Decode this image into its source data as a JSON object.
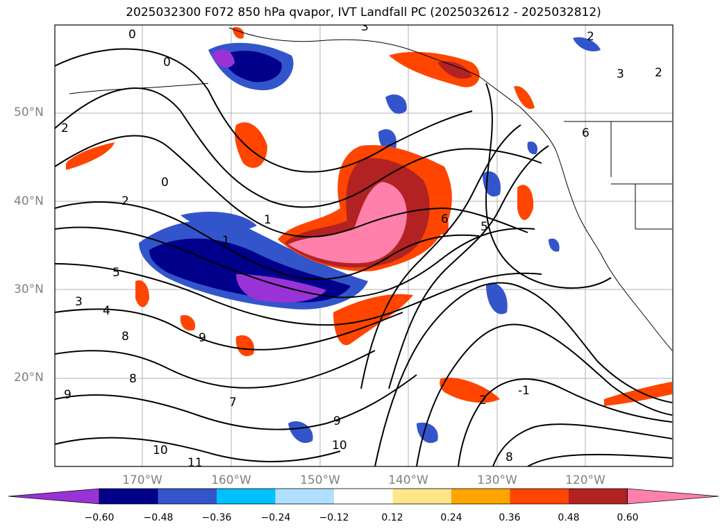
{
  "title": "2025032300 F072 850 hPa qvapor, IVT Landfall PC (2025032612 - 2025032812)",
  "lat_labels": [
    "50°N",
    "40°N",
    "30°N",
    "20°N"
  ],
  "lon_labels": [
    "170°W",
    "160°W",
    "150°W",
    "140°W",
    "130°W",
    "120°W"
  ],
  "colorbar": {
    "ticks": [
      "−0.60",
      "−0.48",
      "−0.36",
      "−0.24",
      "−0.12",
      "0.12",
      "0.24",
      "0.36",
      "0.48",
      "0.60"
    ],
    "colors": [
      "#9933d6",
      "#00008b",
      "#3355cc",
      "#00bfff",
      "#b0e0ff",
      "#ffffff",
      "#ffe68a",
      "#ffa500",
      "#ff4500",
      "#b22222",
      "#ff80aa"
    ]
  },
  "contour_labels": [
    "0",
    "0",
    "0",
    "2",
    "2",
    "2",
    "2",
    "3",
    "3",
    "4",
    "5",
    "5",
    "6",
    "6",
    "8",
    "8",
    "9",
    "9",
    "10",
    "10",
    "11",
    "1",
    "1",
    "3",
    "7",
    "9",
    "8",
    "-1",
    "2"
  ]
}
